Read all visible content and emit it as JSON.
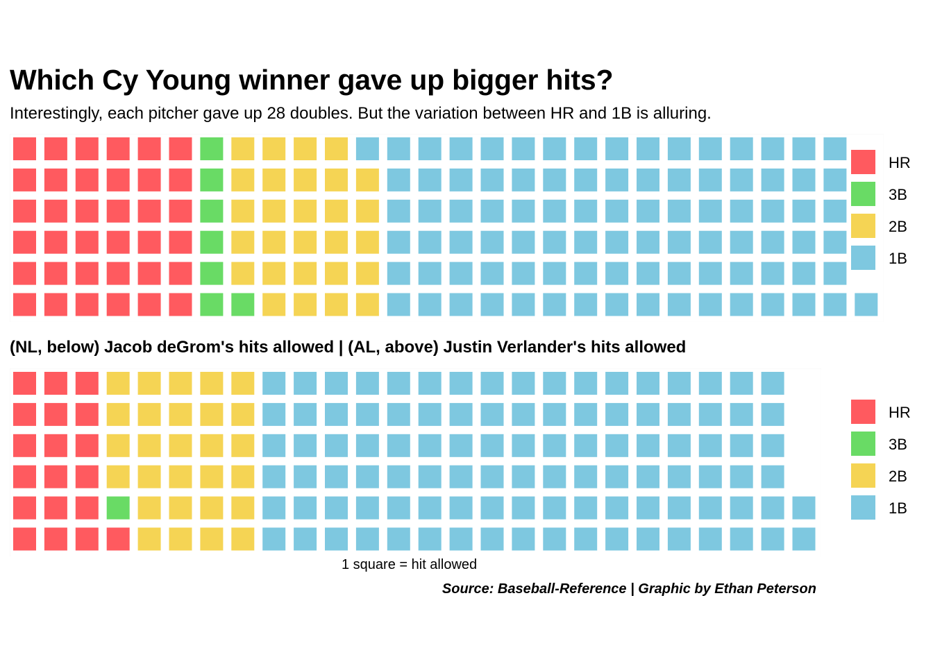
{
  "title": "Which Cy Young winner gave up bigger hits?",
  "subtitle": "Interestingly, each pitcher gave up 28 doubles. But the variation between HR and 1B is alluring.",
  "middle_title": "(NL, below) Jacob deGrom's hits allowed | (AL, above) Justin Verlander's hits allowed",
  "caption": "1 square = hit allowed",
  "source": "Source: Baseball-Reference | Graphic by Ethan Peterson",
  "legend": [
    {
      "label": "HR",
      "color": "#FF5A5F"
    },
    {
      "label": "3B",
      "color": "#69DB65"
    },
    {
      "label": "2B",
      "color": "#F5D454"
    },
    {
      "label": "1B",
      "color": "#7EC8E0"
    }
  ],
  "chart_data": [
    {
      "type": "waffle",
      "pitcher": "Justin Verlander",
      "league": "AL",
      "rows": 6,
      "categories": [
        "HR",
        "3B",
        "2B",
        "1B"
      ],
      "values": [
        36,
        7,
        28,
        92
      ],
      "total": 163
    },
    {
      "type": "waffle",
      "pitcher": "Jacob deGrom",
      "league": "NL",
      "rows": 6,
      "categories": [
        "HR",
        "3B",
        "2B",
        "1B"
      ],
      "values": [
        19,
        1,
        28,
        104
      ],
      "total": 152
    }
  ]
}
